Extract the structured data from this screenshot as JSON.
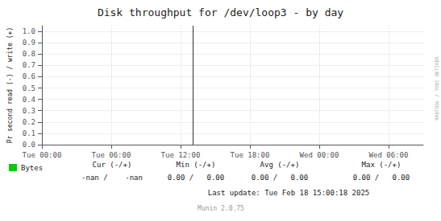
{
  "chart_data": {
    "type": "line",
    "title": "Disk throughput for /dev/loop3 - by day",
    "y_label": "Pr second read (-) / write (+)",
    "x": [],
    "series": [
      {
        "name": "Bytes",
        "color": "#00cc00",
        "values": []
      }
    ],
    "xlim": [
      0,
      5.5
    ],
    "xticks": [
      {
        "value": 0,
        "label": "Tue 00:00"
      },
      {
        "value": 1,
        "label": "Tue 06:00"
      },
      {
        "value": 2,
        "label": "Tue 12:00"
      },
      {
        "value": 3,
        "label": "Tue 18:00"
      },
      {
        "value": 4,
        "label": "Wed 00:00"
      },
      {
        "value": 5,
        "label": "Wed 06:00"
      }
    ],
    "ylim": [
      0.0,
      1.05
    ],
    "yticks": [
      {
        "value": 0.0,
        "label": "0.0"
      },
      0.1,
      0.2,
      0.3,
      0.4,
      0.5,
      0.6,
      0.7,
      0.8,
      0.9,
      {
        "value": 1.0,
        "label": "1.0"
      }
    ],
    "grid": true,
    "legend": "bottom-left",
    "vlines": [
      2.18
    ],
    "stats": [
      {
        "label": "Cur (-/+)",
        "value": "-nan /    -nan"
      },
      {
        "label": "Min (-/+)",
        "value": "0.00 /   0.00"
      },
      {
        "label": "Avg (-/+)",
        "value": "0.00 /   0.00"
      },
      {
        "label": "Max (-/+)",
        "value": "0.00 /   0.00"
      }
    ],
    "annotations": [
      "Last update: Tue Feb 18 15:00:18 2025",
      "Munin 2.0.75",
      "RRDTOOL / TOBI OETIKER"
    ]
  }
}
